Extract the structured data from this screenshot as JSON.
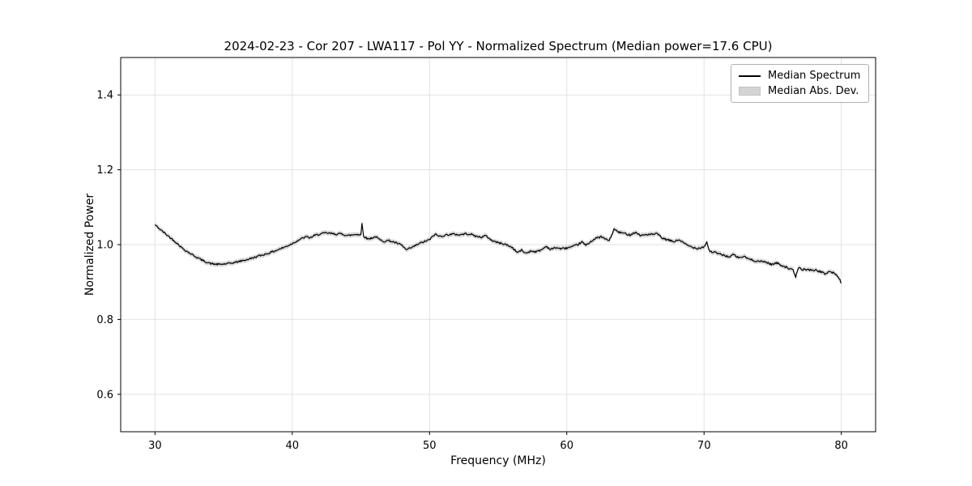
{
  "figure": {
    "background": "#ffffff",
    "frame_color": "#000000",
    "grid_color": "#e2e2e2"
  },
  "chart_data": {
    "type": "line",
    "title": "2024-02-23 - Cor 207 - LWA117 - Pol YY - Normalized Spectrum (Median power=17.6 CPU)",
    "xlabel": "Frequency (MHz)",
    "ylabel": "Normalized Power",
    "xlim": [
      27.5,
      82.5
    ],
    "ylim": [
      0.5,
      1.5
    ],
    "x_ticks": [
      30,
      40,
      50,
      60,
      70,
      80
    ],
    "y_ticks": [
      0.6,
      0.8,
      1.0,
      1.2,
      1.4
    ],
    "grid": true,
    "legend_position": "upper-right",
    "legend": {
      "entries": [
        {
          "label": "Median Spectrum",
          "swatch": "line",
          "color": "#000000"
        },
        {
          "label": "Median Abs. Dev.",
          "swatch": "band",
          "color": "#d4d4d4"
        }
      ]
    },
    "series": [
      {
        "name": "Median Spectrum",
        "type": "line",
        "color": "#000000",
        "noise_amplitude": 0.0025,
        "x": [
          30.0,
          30.2,
          30.5,
          30.8,
          31.0,
          31.3,
          31.6,
          32.0,
          32.5,
          33.0,
          33.5,
          34.0,
          34.3,
          34.7,
          35.0,
          35.5,
          36.0,
          36.5,
          37.0,
          37.5,
          38.0,
          38.5,
          39.0,
          39.5,
          40.0,
          40.5,
          41.0,
          41.3,
          41.6,
          42.0,
          42.4,
          42.8,
          43.2,
          43.6,
          44.0,
          44.4,
          44.7,
          45.0,
          45.08,
          45.2,
          45.5,
          45.8,
          46.1,
          46.4,
          46.7,
          47.0,
          47.3,
          47.6,
          48.0,
          48.3,
          48.6,
          49.0,
          49.4,
          49.7,
          50.0,
          50.4,
          50.7,
          51.0,
          51.4,
          51.8,
          52.2,
          52.6,
          53.0,
          53.4,
          53.8,
          54.1,
          54.5,
          55.0,
          55.5,
          56.0,
          56.4,
          56.7,
          57.0,
          57.4,
          57.8,
          58.2,
          58.5,
          58.8,
          59.2,
          59.6,
          60.0,
          60.4,
          60.8,
          61.1,
          61.4,
          61.8,
          62.2,
          62.5,
          62.8,
          63.1,
          63.45,
          63.8,
          64.2,
          64.6,
          65.0,
          65.4,
          65.8,
          66.2,
          66.6,
          67.0,
          67.4,
          67.8,
          68.2,
          68.6,
          69.0,
          69.5,
          70.0,
          70.2,
          70.4,
          70.8,
          71.2,
          71.6,
          71.9,
          72.1,
          72.5,
          72.9,
          73.3,
          73.7,
          74.1,
          74.5,
          74.9,
          75.3,
          75.7,
          76.1,
          76.5,
          76.68,
          76.85,
          77.1,
          77.5,
          78.0,
          78.4,
          78.8,
          79.1,
          79.4,
          79.7,
          79.85,
          80.0
        ],
        "y": [
          1.053,
          1.046,
          1.037,
          1.028,
          1.022,
          1.013,
          1.004,
          0.99,
          0.978,
          0.967,
          0.957,
          0.95,
          0.948,
          0.947,
          0.948,
          0.95,
          0.954,
          0.958,
          0.963,
          0.969,
          0.974,
          0.98,
          0.987,
          0.994,
          1.003,
          1.013,
          1.021,
          1.018,
          1.024,
          1.028,
          1.031,
          1.03,
          1.028,
          1.029,
          1.024,
          1.026,
          1.028,
          1.026,
          1.056,
          1.023,
          1.015,
          1.018,
          1.021,
          1.012,
          1.009,
          1.011,
          1.008,
          1.004,
          0.998,
          0.986,
          0.99,
          0.998,
          1.005,
          1.009,
          1.013,
          1.028,
          1.022,
          1.024,
          1.027,
          1.028,
          1.026,
          1.029,
          1.028,
          1.022,
          1.02,
          1.024,
          1.012,
          1.005,
          1.001,
          0.993,
          0.979,
          0.985,
          0.977,
          0.983,
          0.981,
          0.987,
          0.996,
          0.987,
          0.992,
          0.989,
          0.991,
          0.994,
          1.0,
          1.007,
          0.998,
          1.01,
          1.018,
          1.021,
          1.015,
          1.011,
          1.041,
          1.033,
          1.03,
          1.026,
          1.033,
          1.024,
          1.027,
          1.027,
          1.029,
          1.016,
          1.012,
          1.008,
          1.013,
          1.002,
          0.995,
          0.99,
          0.994,
          1.007,
          0.982,
          0.979,
          0.974,
          0.97,
          0.966,
          0.974,
          0.965,
          0.968,
          0.961,
          0.957,
          0.955,
          0.954,
          0.947,
          0.951,
          0.944,
          0.938,
          0.931,
          0.912,
          0.938,
          0.934,
          0.933,
          0.932,
          0.929,
          0.922,
          0.928,
          0.925,
          0.917,
          0.91,
          0.897
        ]
      },
      {
        "name": "Median Abs. Dev.",
        "type": "band",
        "color": "#c9c9c9",
        "half_width": 0.0065
      }
    ]
  }
}
